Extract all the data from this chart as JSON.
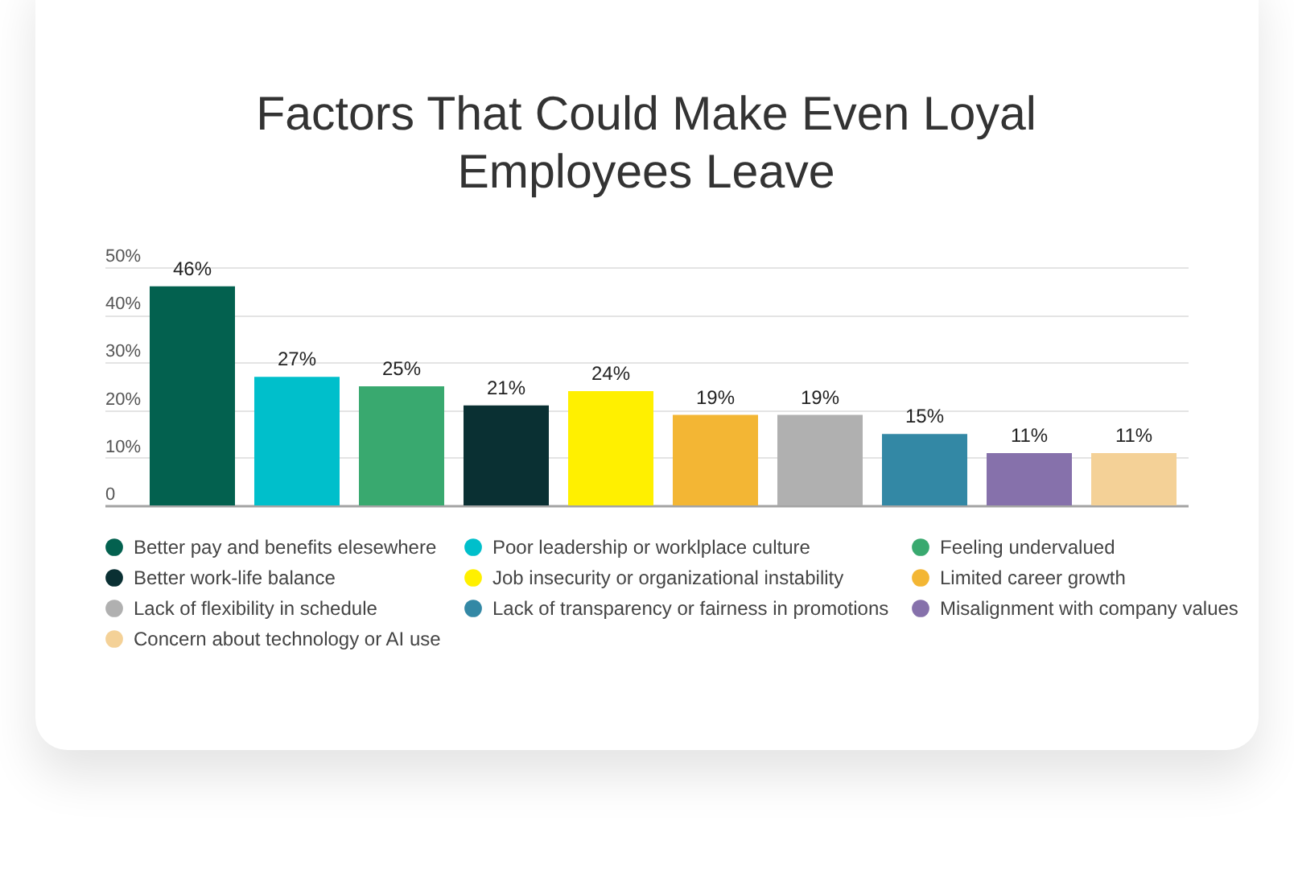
{
  "chart_data": {
    "type": "bar",
    "title": "Factors That Could Make Even Loyal Employees Leave",
    "categories": [
      null
    ],
    "series": [
      {
        "name": "Better pay and benefits elesewhere",
        "color": "#03614f",
        "values": [
          46
        ],
        "value_labels": [
          "46%"
        ]
      },
      {
        "name": "Poor leadership or worklplace culture",
        "color": "#00bfcb",
        "values": [
          27
        ],
        "value_labels": [
          "27%"
        ]
      },
      {
        "name": "Feeling undervalued",
        "color": "#39a96f",
        "values": [
          25
        ],
        "value_labels": [
          "25%"
        ]
      },
      {
        "name": "Better work-life balance",
        "color": "#0a3033",
        "values": [
          21
        ],
        "value_labels": [
          "21%"
        ]
      },
      {
        "name": "Job insecurity or organizational instability",
        "color": "#fff000",
        "values": [
          24
        ],
        "value_labels": [
          "24%"
        ]
      },
      {
        "name": "Limited career growth",
        "color": "#f3b634",
        "values": [
          19
        ],
        "value_labels": [
          "19%"
        ]
      },
      {
        "name": "Lack of flexibility in schedule",
        "color": "#b0b0b0",
        "values": [
          19
        ],
        "value_labels": [
          "19%"
        ]
      },
      {
        "name": "Lack of transparency or fairness in promotions",
        "color": "#3388a5",
        "values": [
          15
        ],
        "value_labels": [
          "15%"
        ]
      },
      {
        "name": "Misalignment with company values",
        "color": "#8671ab",
        "values": [
          11
        ],
        "value_labels": [
          "11%"
        ]
      },
      {
        "name": "Concern about technology or AI use",
        "color": "#f4d197",
        "values": [
          11
        ],
        "value_labels": [
          "11%"
        ]
      }
    ],
    "ylim": [
      0,
      50
    ],
    "yticks": [
      0,
      {
        "value": 10,
        "label": "10%"
      },
      {
        "value": 20,
        "label": "20%"
      },
      {
        "value": 30,
        "label": "30%"
      },
      {
        "value": 40,
        "label": "40%"
      },
      {
        "value": 50,
        "label": "50%"
      }
    ],
    "grid": "y",
    "legend": "bottom",
    "tick_labels": "y"
  }
}
